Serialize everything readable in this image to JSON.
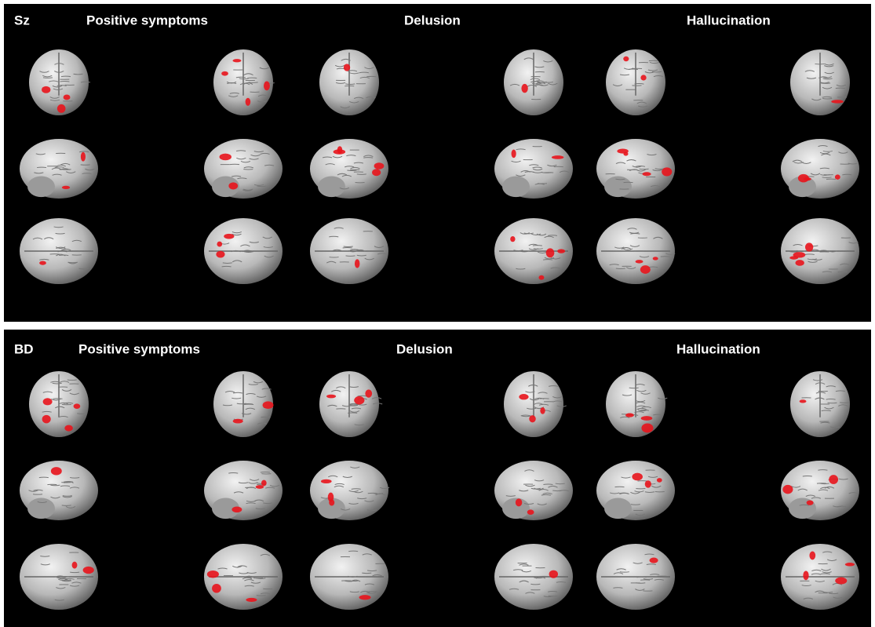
{
  "panels": [
    {
      "group": "Sz",
      "headers": [
        "Positive symptoms",
        "Delusion",
        "Hallucination"
      ]
    },
    {
      "group": "BD",
      "headers": [
        "Positive symptoms",
        "Delusion",
        "Hallucination"
      ]
    }
  ]
}
